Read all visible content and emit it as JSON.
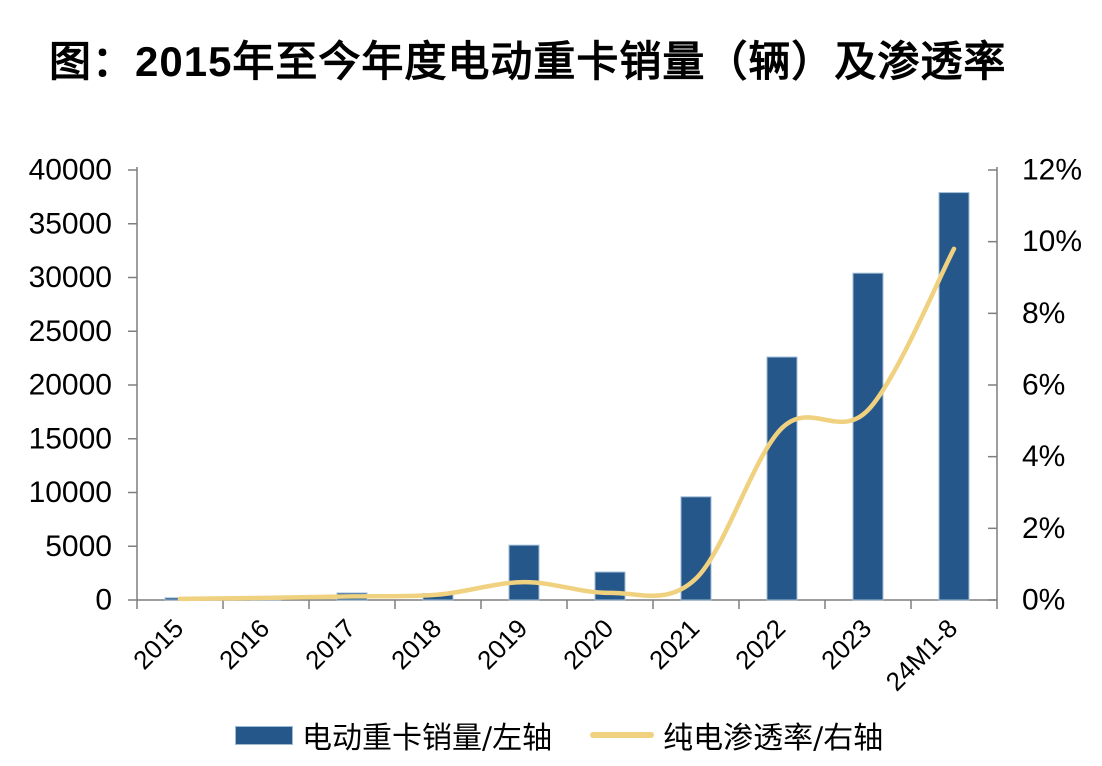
{
  "title": "图：2015年至今年度电动重卡销量（辆）及渗透率",
  "chart_data": {
    "type": "combo-bar-line",
    "categories": [
      "2015",
      "2016",
      "2017",
      "2018",
      "2019",
      "2020",
      "2021",
      "2022",
      "2023",
      "24M1-8"
    ],
    "series": [
      {
        "name": "电动重卡销量/左轴",
        "type": "bar",
        "axis": "left",
        "unit": "辆",
        "values": [
          200,
          100,
          650,
          600,
          5100,
          2600,
          9600,
          22600,
          30400,
          37900
        ]
      },
      {
        "name": "纯电渗透率/右轴",
        "type": "line",
        "axis": "right",
        "unit": "%",
        "values": [
          0.03,
          0.06,
          0.1,
          0.15,
          0.5,
          0.2,
          0.6,
          4.8,
          5.3,
          9.8
        ]
      }
    ],
    "left_axis": {
      "min": 0,
      "max": 40000,
      "step": 5000
    },
    "right_axis": {
      "min": 0,
      "max": 12,
      "step": 2,
      "suffix": "%"
    },
    "grid": false,
    "legend_position": "bottom",
    "x_label_rotation_deg": -45
  },
  "legend": {
    "items": [
      {
        "label": "电动重卡销量/左轴",
        "swatch": "bar"
      },
      {
        "label": "纯电渗透率/右轴",
        "swatch": "line"
      }
    ]
  },
  "colors": {
    "bar": "#26578a",
    "bar_border": "#9dbcd4",
    "line": "#efd17f",
    "axis": "#7f7f7f",
    "text": "#000000"
  }
}
